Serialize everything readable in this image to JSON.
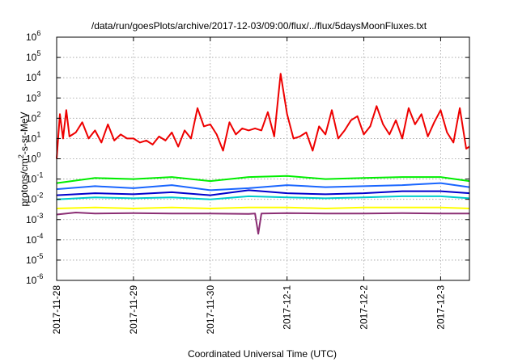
{
  "chart_data": {
    "type": "line",
    "title": "/data/run/goesPlots/archive/2017-12-03/09:00/flux/../flux/5daysMoonFluxes.txt",
    "xlabel": "Coordinated Universal Time (UTC)",
    "ylabel": "protons/cm2-s-sr-MeV",
    "ylabel_parts": {
      "pre": "protons/cm",
      "sup": "2",
      "post": "-s-sr-MeV"
    },
    "yscale": "log",
    "ylim_exponents": [
      -6,
      6
    ],
    "ytick_labels": [
      {
        "exp": -6,
        "base": "10",
        "sup": "-6"
      },
      {
        "exp": -5,
        "base": "10",
        "sup": "-5"
      },
      {
        "exp": -4,
        "base": "10",
        "sup": "-4"
      },
      {
        "exp": -3,
        "base": "10",
        "sup": "-3"
      },
      {
        "exp": -2,
        "base": "10",
        "sup": "-2"
      },
      {
        "exp": -1,
        "base": "10",
        "sup": "-1"
      },
      {
        "exp": 0,
        "base": "10",
        "sup": "0"
      },
      {
        "exp": 1,
        "base": "10",
        "sup": "1"
      },
      {
        "exp": 2,
        "base": "10",
        "sup": "2"
      },
      {
        "exp": 3,
        "base": "10",
        "sup": "3"
      },
      {
        "exp": 4,
        "base": "10",
        "sup": "4"
      },
      {
        "exp": 5,
        "base": "10",
        "sup": "5"
      },
      {
        "exp": 6,
        "base": "10",
        "sup": "6"
      }
    ],
    "xlim": [
      "2017-11-28T00:00",
      "2017-12-03T09:00"
    ],
    "xticks": [
      {
        "x": "2017-11-28T00:00",
        "label": "2017-11-28"
      },
      {
        "x": "2017-11-29T00:00",
        "label": "2017-11-29"
      },
      {
        "x": "2017-11-30T00:00",
        "label": "2017-11-30"
      },
      {
        "x": "2017-12-01T00:00",
        "label": "2017-12-1"
      },
      {
        "x": "2017-12-02T00:00",
        "label": "2017-12-2"
      },
      {
        "x": "2017-12-03T00:00",
        "label": "2017-12-3"
      }
    ],
    "grid": true,
    "series_note": "Values are log10 of flux, estimated from gridlines",
    "series": [
      {
        "color": "#ee0000",
        "x": [
          "2017-11-28T00:00",
          "2017-11-28T01:00",
          "2017-11-28T02:00",
          "2017-11-28T03:00",
          "2017-11-28T04:00",
          "2017-11-28T06:00",
          "2017-11-28T08:00",
          "2017-11-28T10:00",
          "2017-11-28T12:00",
          "2017-11-28T14:00",
          "2017-11-28T16:00",
          "2017-11-28T18:00",
          "2017-11-28T20:00",
          "2017-11-28T22:00",
          "2017-11-29T00:00",
          "2017-11-29T02:00",
          "2017-11-29T04:00",
          "2017-11-29T06:00",
          "2017-11-29T08:00",
          "2017-11-29T10:00",
          "2017-11-29T12:00",
          "2017-11-29T14:00",
          "2017-11-29T16:00",
          "2017-11-29T18:00",
          "2017-11-29T20:00",
          "2017-11-29T22:00",
          "2017-11-30T00:00",
          "2017-11-30T02:00",
          "2017-11-30T04:00",
          "2017-11-30T06:00",
          "2017-11-30T08:00",
          "2017-11-30T10:00",
          "2017-11-30T12:00",
          "2017-11-30T14:00",
          "2017-11-30T16:00",
          "2017-11-30T18:00",
          "2017-11-30T20:00",
          "2017-11-30T22:00",
          "2017-12-01T00:00",
          "2017-12-01T02:00",
          "2017-12-01T04:00",
          "2017-12-01T06:00",
          "2017-12-01T08:00",
          "2017-12-01T10:00",
          "2017-12-01T12:00",
          "2017-12-01T14:00",
          "2017-12-01T16:00",
          "2017-12-01T18:00",
          "2017-12-01T20:00",
          "2017-12-01T22:00",
          "2017-12-02T00:00",
          "2017-12-02T02:00",
          "2017-12-02T04:00",
          "2017-12-02T06:00",
          "2017-12-02T08:00",
          "2017-12-02T10:00",
          "2017-12-02T12:00",
          "2017-12-02T14:00",
          "2017-12-02T16:00",
          "2017-12-02T18:00",
          "2017-12-02T20:00",
          "2017-12-02T22:00",
          "2017-12-03T00:00",
          "2017-12-03T02:00",
          "2017-12-03T04:00",
          "2017-12-03T06:00",
          "2017-12-03T08:00",
          "2017-12-03T09:00"
        ],
        "values": [
          0.0,
          2.2,
          1.0,
          2.4,
          1.1,
          1.3,
          1.8,
          1.0,
          1.4,
          0.8,
          1.7,
          0.9,
          1.2,
          1.0,
          1.0,
          0.8,
          0.9,
          0.7,
          1.1,
          0.9,
          1.3,
          0.6,
          1.4,
          1.0,
          2.5,
          1.6,
          1.7,
          1.2,
          0.4,
          1.8,
          1.2,
          1.5,
          1.4,
          1.5,
          1.4,
          2.3,
          1.1,
          4.2,
          2.2,
          1.0,
          1.1,
          1.3,
          0.4,
          1.6,
          1.2,
          2.4,
          1.0,
          1.4,
          1.9,
          2.1,
          1.2,
          1.6,
          2.6,
          1.7,
          1.2,
          1.9,
          1.0,
          2.5,
          1.7,
          2.2,
          1.1,
          1.8,
          2.4,
          1.3,
          0.8,
          2.5,
          0.5,
          0.6
        ]
      },
      {
        "color": "#00ee00",
        "x": [
          "2017-11-28T00:00",
          "2017-11-28T12:00",
          "2017-11-29T00:00",
          "2017-11-29T12:00",
          "2017-11-30T00:00",
          "2017-11-30T12:00",
          "2017-12-01T00:00",
          "2017-12-01T12:00",
          "2017-12-02T00:00",
          "2017-12-02T12:00",
          "2017-12-03T00:00",
          "2017-12-03T09:00"
        ],
        "values": [
          -1.2,
          -0.95,
          -1.0,
          -0.9,
          -1.1,
          -0.9,
          -0.85,
          -1.0,
          -0.95,
          -0.9,
          -0.9,
          -1.1
        ]
      },
      {
        "color": "#1a66ff",
        "x": [
          "2017-11-28T00:00",
          "2017-11-28T12:00",
          "2017-11-29T00:00",
          "2017-11-29T12:00",
          "2017-11-30T00:00",
          "2017-11-30T12:00",
          "2017-12-01T00:00",
          "2017-12-01T12:00",
          "2017-12-02T00:00",
          "2017-12-02T12:00",
          "2017-12-03T00:00",
          "2017-12-03T09:00"
        ],
        "values": [
          -1.5,
          -1.35,
          -1.45,
          -1.3,
          -1.55,
          -1.45,
          -1.3,
          -1.4,
          -1.35,
          -1.3,
          -1.2,
          -1.4
        ]
      },
      {
        "color": "#0000cc",
        "x": [
          "2017-11-28T00:00",
          "2017-11-28T12:00",
          "2017-11-29T00:00",
          "2017-11-29T12:00",
          "2017-11-30T00:00",
          "2017-11-30T12:00",
          "2017-12-01T00:00",
          "2017-12-01T12:00",
          "2017-12-02T00:00",
          "2017-12-02T12:00",
          "2017-12-03T00:00",
          "2017-12-03T09:00"
        ],
        "values": [
          -1.8,
          -1.7,
          -1.75,
          -1.65,
          -1.8,
          -1.55,
          -1.7,
          -1.75,
          -1.7,
          -1.6,
          -1.6,
          -1.7
        ]
      },
      {
        "color": "#00cccc",
        "x": [
          "2017-11-28T00:00",
          "2017-11-28T12:00",
          "2017-11-29T00:00",
          "2017-11-29T12:00",
          "2017-11-30T00:00",
          "2017-11-30T12:00",
          "2017-12-01T00:00",
          "2017-12-01T12:00",
          "2017-12-02T00:00",
          "2017-12-02T12:00",
          "2017-12-03T00:00",
          "2017-12-03T09:00"
        ],
        "values": [
          -2.0,
          -1.9,
          -1.95,
          -1.9,
          -2.0,
          -1.85,
          -1.9,
          -1.95,
          -1.9,
          -1.85,
          -1.85,
          -1.95
        ]
      },
      {
        "color": "#ffff00",
        "x": [
          "2017-11-28T00:00",
          "2017-11-28T12:00",
          "2017-11-29T00:00",
          "2017-11-29T12:00",
          "2017-11-30T00:00",
          "2017-11-30T12:00",
          "2017-12-01T00:00",
          "2017-12-01T12:00",
          "2017-12-02T00:00",
          "2017-12-02T12:00",
          "2017-12-03T00:00",
          "2017-12-03T09:00"
        ],
        "values": [
          -2.45,
          -2.4,
          -2.45,
          -2.4,
          -2.45,
          -2.4,
          -2.4,
          -2.45,
          -2.4,
          -2.4,
          -2.4,
          -2.45
        ]
      },
      {
        "color": "#8b2e74",
        "x": [
          "2017-11-28T00:00",
          "2017-11-28T06:00",
          "2017-11-28T12:00",
          "2017-11-29T00:00",
          "2017-11-29T12:00",
          "2017-11-30T00:00",
          "2017-11-30T12:00",
          "2017-11-30T14:00",
          "2017-11-30T15:00",
          "2017-11-30T16:00",
          "2017-12-01T00:00",
          "2017-12-01T12:00",
          "2017-12-02T00:00",
          "2017-12-02T12:00",
          "2017-12-03T00:00",
          "2017-12-03T09:00"
        ],
        "values": [
          -2.75,
          -2.65,
          -2.7,
          -2.68,
          -2.7,
          -2.7,
          -2.72,
          -2.7,
          -3.7,
          -2.7,
          -2.68,
          -2.7,
          -2.7,
          -2.68,
          -2.7,
          -2.7
        ]
      }
    ]
  }
}
